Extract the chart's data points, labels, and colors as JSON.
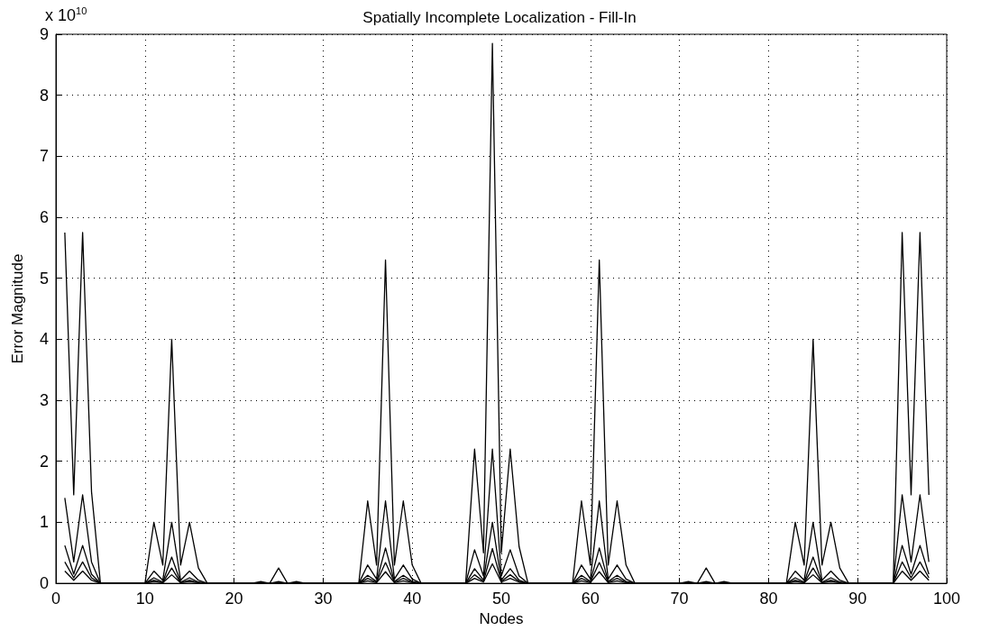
{
  "chart_data": {
    "type": "line",
    "title": "Spatially Incomplete Localization - Fill-In",
    "xlabel": "Nodes",
    "ylabel": "Error Magnitude",
    "annotations": [
      "x 10$^{10}$"
    ],
    "x": [
      1,
      2,
      3,
      4,
      5,
      6,
      7,
      8,
      9,
      10,
      11,
      12,
      13,
      14,
      15,
      16,
      17,
      18,
      19,
      20,
      21,
      22,
      23,
      24,
      25,
      26,
      27,
      28,
      29,
      30,
      31,
      32,
      33,
      34,
      35,
      36,
      37,
      38,
      39,
      40,
      41,
      42,
      43,
      44,
      45,
      46,
      47,
      48,
      49,
      50,
      51,
      52,
      53,
      54,
      55,
      56,
      57,
      58,
      59,
      60,
      61,
      62,
      63,
      64,
      65,
      66,
      67,
      68,
      69,
      70,
      71,
      72,
      73,
      74,
      75,
      76,
      77,
      78,
      79,
      80,
      81,
      82,
      83,
      84,
      85,
      86,
      87,
      88,
      89,
      90,
      91,
      92,
      93,
      94,
      95,
      96,
      97,
      98
    ],
    "series": [
      {
        "color": "#000000",
        "values": [
          5.75,
          1.45,
          5.75,
          1.5,
          0,
          0,
          0,
          0,
          0,
          0,
          1.0,
          0.3,
          4.0,
          0.3,
          1.0,
          0.25,
          0,
          0,
          0,
          0,
          0,
          0,
          0.03,
          0,
          0.25,
          0,
          0.03,
          0,
          0,
          0,
          0,
          0,
          0,
          0,
          1.35,
          0.3,
          5.3,
          0.3,
          1.35,
          0.3,
          0,
          0,
          0,
          0,
          0,
          0,
          2.2,
          0.5,
          8.85,
          0.5,
          2.2,
          0.6,
          0,
          0,
          0,
          0,
          0,
          0,
          1.35,
          0.3,
          5.3,
          0.3,
          1.35,
          0.3,
          0,
          0,
          0,
          0,
          0,
          0,
          0.03,
          0,
          0.25,
          0,
          0.03,
          0,
          0,
          0,
          0,
          0,
          0,
          0,
          1.0,
          0.3,
          4.0,
          0.3,
          1.0,
          0.25,
          0,
          0,
          0,
          0,
          0,
          0,
          5.75,
          1.45,
          5.75,
          1.45
        ]
      },
      {
        "color": "#000000",
        "values": [
          1.4,
          0.35,
          1.45,
          0.35,
          0,
          0,
          0,
          0,
          0,
          0,
          0.2,
          0.05,
          1.0,
          0.05,
          0.2,
          0.05,
          0,
          0,
          0,
          0,
          0,
          0,
          0,
          0,
          0.03,
          0,
          0,
          0,
          0,
          0,
          0,
          0,
          0,
          0,
          0.3,
          0.07,
          1.35,
          0.07,
          0.3,
          0.07,
          0,
          0,
          0,
          0,
          0,
          0,
          0.55,
          0.12,
          2.2,
          0.12,
          0.55,
          0.12,
          0,
          0,
          0,
          0,
          0,
          0,
          0.3,
          0.07,
          1.35,
          0.07,
          0.3,
          0.07,
          0,
          0,
          0,
          0,
          0,
          0,
          0,
          0,
          0.03,
          0,
          0,
          0,
          0,
          0,
          0,
          0,
          0,
          0,
          0.2,
          0.05,
          1.0,
          0.05,
          0.2,
          0.05,
          0,
          0,
          0,
          0,
          0,
          0,
          1.45,
          0.35,
          1.45,
          0.35
        ]
      },
      {
        "color": "#000000",
        "values": [
          0.62,
          0.15,
          0.62,
          0.15,
          0,
          0,
          0,
          0,
          0,
          0,
          0.09,
          0.02,
          0.43,
          0.02,
          0.09,
          0.02,
          0,
          0,
          0,
          0,
          0,
          0,
          0,
          0,
          0,
          0,
          0,
          0,
          0,
          0,
          0,
          0,
          0,
          0,
          0.13,
          0.03,
          0.58,
          0.03,
          0.13,
          0.03,
          0,
          0,
          0,
          0,
          0,
          0,
          0.24,
          0.05,
          1.0,
          0.05,
          0.24,
          0.05,
          0,
          0,
          0,
          0,
          0,
          0,
          0.13,
          0.03,
          0.58,
          0.03,
          0.13,
          0.03,
          0,
          0,
          0,
          0,
          0,
          0,
          0,
          0,
          0,
          0,
          0,
          0,
          0,
          0,
          0,
          0,
          0,
          0,
          0.09,
          0.02,
          0.43,
          0.02,
          0.09,
          0.02,
          0,
          0,
          0,
          0,
          0,
          0,
          0.62,
          0.15,
          0.62,
          0.15
        ]
      },
      {
        "color": "#000000",
        "values": [
          0.35,
          0.09,
          0.35,
          0.09,
          0,
          0,
          0,
          0,
          0,
          0,
          0.05,
          0.01,
          0.25,
          0.01,
          0.05,
          0.01,
          0,
          0,
          0,
          0,
          0,
          0,
          0,
          0,
          0,
          0,
          0,
          0,
          0,
          0,
          0,
          0,
          0,
          0,
          0.08,
          0.02,
          0.34,
          0.02,
          0.08,
          0.02,
          0,
          0,
          0,
          0,
          0,
          0,
          0.14,
          0.03,
          0.57,
          0.03,
          0.14,
          0.03,
          0,
          0,
          0,
          0,
          0,
          0,
          0.08,
          0.02,
          0.34,
          0.02,
          0.08,
          0.02,
          0,
          0,
          0,
          0,
          0,
          0,
          0,
          0,
          0,
          0,
          0,
          0,
          0,
          0,
          0,
          0,
          0,
          0,
          0.05,
          0.01,
          0.25,
          0.01,
          0.05,
          0.01,
          0,
          0,
          0,
          0,
          0,
          0,
          0.35,
          0.09,
          0.35,
          0.09
        ]
      },
      {
        "color": "#000000",
        "values": [
          0.2,
          0.05,
          0.2,
          0.05,
          0,
          0,
          0,
          0,
          0,
          0,
          0.03,
          0.01,
          0.14,
          0.01,
          0.03,
          0.01,
          0,
          0,
          0,
          0,
          0,
          0,
          0,
          0,
          0,
          0,
          0,
          0,
          0,
          0,
          0,
          0,
          0,
          0,
          0.04,
          0.01,
          0.19,
          0.01,
          0.04,
          0.01,
          0,
          0,
          0,
          0,
          0,
          0,
          0.08,
          0.02,
          0.32,
          0.02,
          0.08,
          0.02,
          0,
          0,
          0,
          0,
          0,
          0,
          0.04,
          0.01,
          0.19,
          0.01,
          0.04,
          0.01,
          0,
          0,
          0,
          0,
          0,
          0,
          0,
          0,
          0,
          0,
          0,
          0,
          0,
          0,
          0,
          0,
          0,
          0,
          0.03,
          0.01,
          0.14,
          0.01,
          0.03,
          0.01,
          0,
          0,
          0,
          0,
          0,
          0,
          0.2,
          0.05,
          0.2,
          0.05
        ]
      }
    ],
    "xlim": [
      0,
      100
    ],
    "xticks": [
      0,
      10,
      20,
      30,
      40,
      50,
      60,
      70,
      80,
      90,
      100
    ],
    "ylim": [
      0,
      9
    ],
    "yticks": [
      0,
      1,
      2,
      3,
      4,
      5,
      6,
      7,
      8,
      9
    ],
    "grid": true,
    "marker": "none",
    "line_style": "solid"
  }
}
